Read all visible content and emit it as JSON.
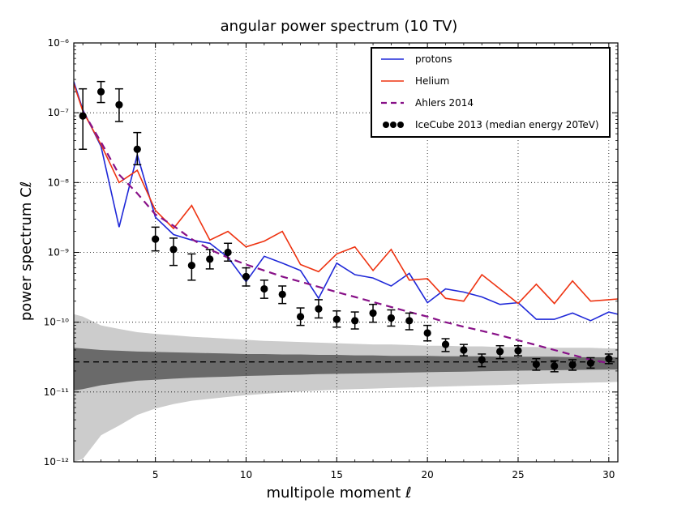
{
  "chart_data": {
    "type": "line",
    "title": "angular power spectrum (10 TV)",
    "xlabel": "multipole moment ℓ",
    "ylabel": "power spectrum Cℓ",
    "xlim": [
      0.5,
      30.5
    ],
    "ylim_log10": [
      -12,
      -6
    ],
    "yscale": "log",
    "grid": true,
    "legend_position": "top-right",
    "x_ticks": [
      5,
      10,
      15,
      20,
      25,
      30
    ],
    "x_tick_labels": [
      "5",
      "10",
      "15",
      "20",
      "25",
      "30"
    ],
    "y_tick_exponents": [
      -12,
      -11,
      -10,
      -9,
      -8,
      -7,
      -6
    ],
    "y_tick_labels": [
      "10⁻¹²",
      "10⁻¹¹",
      "10⁻¹⁰",
      "10⁻⁹",
      "10⁻⁸",
      "10⁻⁷",
      "10⁻⁶"
    ],
    "colors": {
      "protons": "#1f28d8",
      "helium": "#ee3311",
      "ahlers": "#881188",
      "icecube": "#000000",
      "band_outer": "#cccccc",
      "band_inner": "#6a6a6a",
      "isotropic": "#000000"
    },
    "series": [
      {
        "name": "protons",
        "style": "solid",
        "x": [
          0.5,
          1,
          2,
          3,
          4,
          5,
          6,
          7,
          8,
          9,
          10,
          11,
          12,
          13,
          14,
          15,
          16,
          17,
          18,
          19,
          20,
          21,
          22,
          23,
          24,
          25,
          26,
          27,
          28,
          29,
          30,
          30.5
        ],
        "y": [
          2.8e-07,
          1.1e-07,
          3.3e-08,
          2.3e-09,
          2.5e-08,
          3.2e-09,
          1.8e-09,
          1.5e-09,
          1.35e-09,
          8.5e-10,
          3.8e-10,
          8.8e-10,
          7e-10,
          5.5e-10,
          2.2e-10,
          7e-10,
          4.8e-10,
          4.3e-10,
          3.3e-10,
          5e-10,
          1.9e-10,
          3e-10,
          2.7e-10,
          2.3e-10,
          1.8e-10,
          1.9e-10,
          1.1e-10,
          1.1e-10,
          1.35e-10,
          1.05e-10,
          1.4e-10,
          1.3e-10
        ]
      },
      {
        "name": "Helium",
        "style": "solid",
        "x": [
          0.5,
          1,
          2,
          3,
          4,
          5,
          6,
          7,
          8,
          9,
          10,
          11,
          12,
          13,
          14,
          15,
          16,
          17,
          18,
          19,
          20,
          21,
          22,
          23,
          24,
          25,
          26,
          27,
          28,
          29,
          30,
          30.5
        ],
        "y": [
          2.6e-07,
          1.05e-07,
          3.5e-08,
          1e-08,
          1.5e-08,
          4e-09,
          2.2e-09,
          4.7e-09,
          1.5e-09,
          2e-09,
          1.2e-09,
          1.45e-09,
          2e-09,
          6.7e-10,
          5.3e-10,
          9.5e-10,
          1.2e-09,
          5.5e-10,
          1.1e-09,
          4e-10,
          4.2e-10,
          2.2e-10,
          2e-10,
          4.8e-10,
          3e-10,
          1.85e-10,
          3.5e-10,
          1.85e-10,
          3.9e-10,
          2e-10,
          2.1e-10,
          2.15e-10
        ]
      },
      {
        "name": "Ahlers 2014",
        "style": "dashed",
        "x": [
          1,
          2,
          3,
          4,
          5,
          6,
          7,
          8,
          9,
          10,
          11,
          12,
          13,
          14,
          15,
          16,
          17,
          18,
          19,
          20,
          21,
          22,
          23,
          24,
          25,
          26,
          27,
          28,
          29,
          30
        ],
        "y": [
          1.05e-07,
          3.8e-08,
          1.3e-08,
          7e-09,
          3.5e-09,
          2.4e-09,
          1.55e-09,
          1.1e-09,
          8.4e-10,
          6.7e-10,
          5.5e-10,
          4.5e-10,
          3.8e-10,
          3.2e-10,
          2.7e-10,
          2.3e-10,
          1.95e-10,
          1.65e-10,
          1.4e-10,
          1.2e-10,
          1e-10,
          8.6e-11,
          7.5e-11,
          6.5e-11,
          5.5e-11,
          4.7e-11,
          4e-11,
          3.4e-11,
          2.9e-11,
          2.6e-11
        ]
      },
      {
        "name": "IceCube 2013 (median energy 20TeV)",
        "style": "points",
        "x": [
          1,
          2,
          3,
          4,
          5,
          6,
          7,
          8,
          9,
          10,
          11,
          12,
          13,
          14,
          15,
          16,
          17,
          18,
          19,
          20,
          21,
          22,
          23,
          24,
          25,
          26,
          27,
          28,
          29,
          30
        ],
        "y": [
          9e-08,
          2e-07,
          1.3e-07,
          3e-08,
          1.55e-09,
          1.1e-09,
          6.5e-10,
          8e-10,
          1e-09,
          4.5e-10,
          3e-10,
          2.5e-10,
          1.2e-10,
          1.55e-10,
          1.1e-10,
          1.05e-10,
          1.35e-10,
          1.15e-10,
          1.05e-10,
          7e-11,
          4.8e-11,
          4e-11,
          2.9e-11,
          3.8e-11,
          3.9e-11,
          2.5e-11,
          2.35e-11,
          2.45e-11,
          2.6e-11,
          3e-11
        ],
        "err_low": [
          3e-08,
          1.4e-07,
          7.5e-08,
          1.8e-08,
          1.05e-09,
          6.5e-10,
          4e-10,
          5.8e-10,
          7.5e-10,
          3.3e-10,
          2.2e-10,
          1.85e-10,
          9e-11,
          1.15e-10,
          8.5e-11,
          8e-11,
          1e-10,
          8.8e-11,
          7.8e-11,
          5.4e-11,
          3.8e-11,
          3.3e-11,
          2.3e-11,
          3e-11,
          3.3e-11,
          2.05e-11,
          1.95e-11,
          2.05e-11,
          2.2e-11,
          2.55e-11
        ],
        "err_high": [
          2.2e-07,
          2.8e-07,
          2.2e-07,
          5.2e-08,
          2.3e-09,
          1.6e-09,
          9.5e-10,
          1.1e-09,
          1.35e-09,
          6e-10,
          4e-10,
          3.3e-10,
          1.6e-10,
          2.1e-10,
          1.45e-10,
          1.4e-10,
          1.8e-10,
          1.5e-10,
          1.35e-10,
          9e-11,
          5.8e-11,
          4.8e-11,
          3.5e-11,
          4.6e-11,
          4.6e-11,
          3e-11,
          2.8e-11,
          2.9e-11,
          3.1e-11,
          3.5e-11
        ]
      }
    ],
    "isotropic_level": 2.7e-11,
    "band_outer": {
      "x": [
        0.5,
        1,
        2,
        3,
        4,
        5,
        6,
        7,
        8,
        9,
        10,
        11,
        12,
        13,
        14,
        15,
        16,
        17,
        18,
        19,
        20,
        21,
        22,
        23,
        24,
        25,
        26,
        27,
        28,
        29,
        30,
        30.5
      ],
      "upper": [
        1.3e-10,
        1.2e-10,
        9e-11,
        8e-11,
        7.2e-11,
        6.8e-11,
        6.5e-11,
        6.2e-11,
        6e-11,
        5.8e-11,
        5.6e-11,
        5.4e-11,
        5.3e-11,
        5.2e-11,
        5.1e-11,
        5e-11,
        4.9e-11,
        4.8e-11,
        4.8e-11,
        4.7e-11,
        4.6e-11,
        4.6e-11,
        4.5e-11,
        4.5e-11,
        4.4e-11,
        4.4e-11,
        4.4e-11,
        4.3e-11,
        4.3e-11,
        4.3e-11,
        4.2e-11,
        4.2e-11
      ],
      "lower": [
        1e-12,
        1.1e-12,
        2.4e-12,
        3.3e-12,
        4.7e-12,
        5.8e-12,
        6.7e-12,
        7.5e-12,
        8e-12,
        8.5e-12,
        9e-12,
        9.4e-12,
        9.8e-12,
        1.02e-11,
        1.05e-11,
        1.08e-11,
        1.1e-11,
        1.12e-11,
        1.14e-11,
        1.16e-11,
        1.18e-11,
        1.2e-11,
        1.22e-11,
        1.24e-11,
        1.26e-11,
        1.28e-11,
        1.3e-11,
        1.32e-11,
        1.34e-11,
        1.36e-11,
        1.38e-11,
        1.4e-11
      ]
    },
    "band_inner": {
      "x": [
        0.5,
        1,
        2,
        3,
        4,
        5,
        6,
        7,
        8,
        9,
        10,
        11,
        12,
        13,
        14,
        15,
        16,
        17,
        18,
        19,
        20,
        21,
        22,
        23,
        24,
        25,
        26,
        27,
        28,
        29,
        30,
        30.5
      ],
      "upper": [
        4.3e-11,
        4.2e-11,
        4e-11,
        3.9e-11,
        3.8e-11,
        3.75e-11,
        3.7e-11,
        3.65e-11,
        3.6e-11,
        3.55e-11,
        3.5e-11,
        3.5e-11,
        3.45e-11,
        3.45e-11,
        3.4e-11,
        3.4e-11,
        3.35e-11,
        3.35e-11,
        3.3e-11,
        3.3e-11,
        3.3e-11,
        3.25e-11,
        3.25e-11,
        3.25e-11,
        3.2e-11,
        3.2e-11,
        3.2e-11,
        3.2e-11,
        3.15e-11,
        3.15e-11,
        3.15e-11,
        3.15e-11
      ],
      "lower": [
        1.05e-11,
        1.1e-11,
        1.25e-11,
        1.35e-11,
        1.45e-11,
        1.5e-11,
        1.55e-11,
        1.6e-11,
        1.63e-11,
        1.66e-11,
        1.7e-11,
        1.72e-11,
        1.75e-11,
        1.77e-11,
        1.8e-11,
        1.82e-11,
        1.84e-11,
        1.86e-11,
        1.88e-11,
        1.9e-11,
        1.92e-11,
        1.94e-11,
        1.96e-11,
        1.98e-11,
        2e-11,
        2.02e-11,
        2.04e-11,
        2.05e-11,
        2.07e-11,
        2.08e-11,
        2.1e-11,
        2.1e-11
      ]
    }
  }
}
